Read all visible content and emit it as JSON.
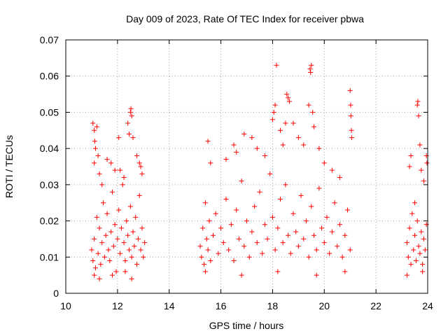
{
  "chart_data": {
    "type": "scatter",
    "title": "Day 009 of 2023, Rate Of TEC Index for receiver pbwa",
    "xlabel": "GPS time / hours",
    "ylabel": "ROTI / TECUs",
    "xlim": [
      10,
      24
    ],
    "ylim": [
      0,
      0.07
    ],
    "grid": true,
    "marker": "plus",
    "color": "#ff0000",
    "x_ticks": [
      10,
      12,
      14,
      16,
      18,
      20,
      22,
      24
    ],
    "x_tick_labels": [
      "10",
      "12",
      "14",
      "16",
      "18",
      "20",
      "22",
      "24"
    ],
    "y_ticks": [
      0,
      0.01,
      0.02,
      0.03,
      0.04,
      0.05,
      0.06,
      0.07
    ],
    "y_tick_labels": [
      "0",
      "0.01",
      "0.02",
      "0.03",
      "0.04",
      "0.05",
      "0.06",
      "0.07"
    ],
    "series": [
      {
        "name": "ROTI",
        "points": [
          [
            11.0,
            0.012
          ],
          [
            11.05,
            0.009
          ],
          [
            11.1,
            0.015
          ],
          [
            11.15,
            0.007
          ],
          [
            11.2,
            0.021
          ],
          [
            11.25,
            0.011
          ],
          [
            11.3,
            0.018
          ],
          [
            11.35,
            0.008
          ],
          [
            11.4,
            0.014
          ],
          [
            11.45,
            0.025
          ],
          [
            11.5,
            0.01
          ],
          [
            11.55,
            0.016
          ],
          [
            11.6,
            0.022
          ],
          [
            11.65,
            0.012
          ],
          [
            11.7,
            0.009
          ],
          [
            11.75,
            0.017
          ],
          [
            11.8,
            0.028
          ],
          [
            11.85,
            0.013
          ],
          [
            11.9,
            0.019
          ],
          [
            11.95,
            0.006
          ],
          [
            12.0,
            0.015
          ],
          [
            12.05,
            0.023
          ],
          [
            12.1,
            0.011
          ],
          [
            12.15,
            0.018
          ],
          [
            12.2,
            0.03
          ],
          [
            12.25,
            0.014
          ],
          [
            12.3,
            0.009
          ],
          [
            12.35,
            0.02
          ],
          [
            12.4,
            0.016
          ],
          [
            12.45,
            0.012
          ],
          [
            12.5,
            0.024
          ],
          [
            12.55,
            0.01
          ],
          [
            12.6,
            0.017
          ],
          [
            12.65,
            0.013
          ],
          [
            12.7,
            0.021
          ],
          [
            12.75,
            0.008
          ],
          [
            12.8,
            0.015
          ],
          [
            12.85,
            0.027
          ],
          [
            12.9,
            0.012
          ],
          [
            12.95,
            0.018
          ],
          [
            13.0,
            0.01
          ],
          [
            13.05,
            0.014
          ],
          [
            11.05,
            0.047
          ],
          [
            11.1,
            0.045
          ],
          [
            11.15,
            0.04
          ],
          [
            11.2,
            0.046
          ],
          [
            11.1,
            0.036
          ],
          [
            11.12,
            0.042
          ],
          [
            11.25,
            0.038
          ],
          [
            11.3,
            0.033
          ],
          [
            11.4,
            0.03
          ],
          [
            11.6,
            0.037
          ],
          [
            11.75,
            0.036
          ],
          [
            11.9,
            0.034
          ],
          [
            12.05,
            0.043
          ],
          [
            12.1,
            0.034
          ],
          [
            12.25,
            0.032
          ],
          [
            12.4,
            0.047
          ],
          [
            12.45,
            0.044
          ],
          [
            12.5,
            0.05
          ],
          [
            12.52,
            0.051
          ],
          [
            12.55,
            0.049
          ],
          [
            12.6,
            0.043
          ],
          [
            12.75,
            0.038
          ],
          [
            12.85,
            0.036
          ],
          [
            12.9,
            0.035
          ],
          [
            12.95,
            0.033
          ],
          [
            11.1,
            0.005
          ],
          [
            11.3,
            0.004
          ],
          [
            11.8,
            0.005
          ],
          [
            12.3,
            0.006
          ],
          [
            12.55,
            0.004
          ],
          [
            15.2,
            0.013
          ],
          [
            15.25,
            0.01
          ],
          [
            15.3,
            0.018
          ],
          [
            15.35,
            0.008
          ],
          [
            15.4,
            0.025
          ],
          [
            15.45,
            0.015
          ],
          [
            15.5,
            0.012
          ],
          [
            15.55,
            0.02
          ],
          [
            15.6,
            0.009
          ],
          [
            15.7,
            0.016
          ],
          [
            15.8,
            0.022
          ],
          [
            15.9,
            0.011
          ],
          [
            16.0,
            0.018
          ],
          [
            16.1,
            0.014
          ],
          [
            16.2,
            0.026
          ],
          [
            16.3,
            0.012
          ],
          [
            16.4,
            0.019
          ],
          [
            16.5,
            0.009
          ],
          [
            16.6,
            0.023
          ],
          [
            16.7,
            0.015
          ],
          [
            16.8,
            0.031
          ],
          [
            16.9,
            0.013
          ],
          [
            17.0,
            0.02
          ],
          [
            17.1,
            0.01
          ],
          [
            17.2,
            0.017
          ],
          [
            17.3,
            0.024
          ],
          [
            17.4,
            0.014
          ],
          [
            17.5,
            0.028
          ],
          [
            17.6,
            0.011
          ],
          [
            17.7,
            0.019
          ],
          [
            17.8,
            0.015
          ],
          [
            17.9,
            0.033
          ],
          [
            18.0,
            0.021
          ],
          [
            18.1,
            0.012
          ],
          [
            18.2,
            0.018
          ],
          [
            18.3,
            0.026
          ],
          [
            18.4,
            0.014
          ],
          [
            18.5,
            0.03
          ],
          [
            18.6,
            0.016
          ],
          [
            18.7,
            0.011
          ],
          [
            18.8,
            0.022
          ],
          [
            18.9,
            0.017
          ],
          [
            19.0,
            0.013
          ],
          [
            19.1,
            0.027
          ],
          [
            19.2,
            0.015
          ],
          [
            19.3,
            0.02
          ],
          [
            19.4,
            0.01
          ],
          [
            19.5,
            0.024
          ],
          [
            19.6,
            0.016
          ],
          [
            19.7,
            0.012
          ],
          [
            19.8,
            0.029
          ],
          [
            19.9,
            0.018
          ],
          [
            20.0,
            0.014
          ],
          [
            20.1,
            0.021
          ],
          [
            20.2,
            0.011
          ],
          [
            20.3,
            0.017
          ],
          [
            20.4,
            0.025
          ],
          [
            20.5,
            0.013
          ],
          [
            20.6,
            0.019
          ],
          [
            20.7,
            0.01
          ],
          [
            20.8,
            0.016
          ],
          [
            20.9,
            0.023
          ],
          [
            21.0,
            0.012
          ],
          [
            15.5,
            0.042
          ],
          [
            15.6,
            0.036
          ],
          [
            16.2,
            0.037
          ],
          [
            16.5,
            0.041
          ],
          [
            16.6,
            0.039
          ],
          [
            16.9,
            0.044
          ],
          [
            17.2,
            0.043
          ],
          [
            17.4,
            0.04
          ],
          [
            17.7,
            0.038
          ],
          [
            18.0,
            0.048
          ],
          [
            18.05,
            0.05
          ],
          [
            18.1,
            0.052
          ],
          [
            18.15,
            0.063
          ],
          [
            18.3,
            0.045
          ],
          [
            18.4,
            0.041
          ],
          [
            18.5,
            0.047
          ],
          [
            18.55,
            0.055
          ],
          [
            18.6,
            0.054
          ],
          [
            18.65,
            0.053
          ],
          [
            18.8,
            0.047
          ],
          [
            19.0,
            0.043
          ],
          [
            19.2,
            0.041
          ],
          [
            19.4,
            0.052
          ],
          [
            19.45,
            0.062
          ],
          [
            19.47,
            0.061
          ],
          [
            19.5,
            0.063
          ],
          [
            19.55,
            0.05
          ],
          [
            19.6,
            0.046
          ],
          [
            19.8,
            0.04
          ],
          [
            20.0,
            0.036
          ],
          [
            20.3,
            0.034
          ],
          [
            20.6,
            0.032
          ],
          [
            21.0,
            0.056
          ],
          [
            21.02,
            0.052
          ],
          [
            21.03,
            0.049
          ],
          [
            21.05,
            0.045
          ],
          [
            21.06,
            0.043
          ],
          [
            15.4,
            0.006
          ],
          [
            16.8,
            0.005
          ],
          [
            18.2,
            0.006
          ],
          [
            19.7,
            0.005
          ],
          [
            20.8,
            0.006
          ],
          [
            23.2,
            0.014
          ],
          [
            23.25,
            0.01
          ],
          [
            23.3,
            0.018
          ],
          [
            23.35,
            0.008
          ],
          [
            23.4,
            0.022
          ],
          [
            23.45,
            0.012
          ],
          [
            23.5,
            0.016
          ],
          [
            23.55,
            0.009
          ],
          [
            23.6,
            0.02
          ],
          [
            23.65,
            0.013
          ],
          [
            23.7,
            0.011
          ],
          [
            23.75,
            0.017
          ],
          [
            23.8,
            0.008
          ],
          [
            23.85,
            0.015
          ],
          [
            23.9,
            0.012
          ],
          [
            23.95,
            0.019
          ],
          [
            23.3,
            0.035
          ],
          [
            23.35,
            0.038
          ],
          [
            23.5,
            0.025
          ],
          [
            23.6,
            0.052
          ],
          [
            23.62,
            0.053
          ],
          [
            23.65,
            0.049
          ],
          [
            23.7,
            0.041
          ],
          [
            23.75,
            0.034
          ],
          [
            23.85,
            0.031
          ],
          [
            23.95,
            0.038
          ],
          [
            23.97,
            0.036
          ],
          [
            23.2,
            0.005
          ],
          [
            23.8,
            0.006
          ]
        ]
      }
    ]
  },
  "palette": {
    "marker": "#ff0000",
    "grid": "#a0a0a0",
    "axis": "#000000"
  }
}
